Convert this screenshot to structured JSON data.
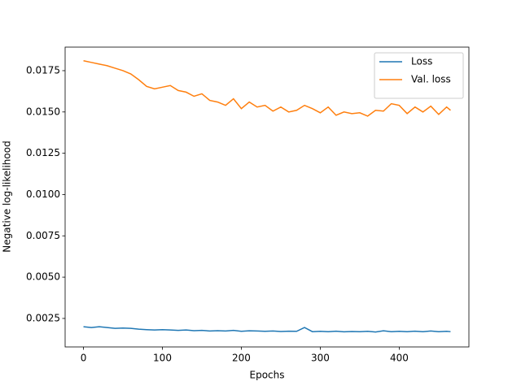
{
  "chart_data": {
    "type": "line",
    "x_label": "Epochs",
    "y_label": "Negative log-likelihood",
    "x": [
      0,
      10,
      20,
      30,
      40,
      50,
      60,
      70,
      80,
      90,
      100,
      110,
      120,
      130,
      140,
      150,
      160,
      170,
      180,
      190,
      200,
      210,
      220,
      230,
      240,
      250,
      260,
      270,
      280,
      290,
      300,
      310,
      320,
      330,
      340,
      350,
      360,
      370,
      380,
      390,
      400,
      410,
      420,
      430,
      440,
      450,
      460,
      465
    ],
    "series": [
      {
        "name": "Loss",
        "color": "#1f77b4",
        "values": [
          0.002,
          0.00195,
          0.002,
          0.00195,
          0.0019,
          0.00192,
          0.0019,
          0.00185,
          0.00182,
          0.0018,
          0.00182,
          0.0018,
          0.00178,
          0.0018,
          0.00176,
          0.00178,
          0.00174,
          0.00176,
          0.00174,
          0.00178,
          0.00172,
          0.00175,
          0.00174,
          0.00172,
          0.00174,
          0.00171,
          0.00173,
          0.00172,
          0.00195,
          0.0017,
          0.00172,
          0.0017,
          0.00173,
          0.00169,
          0.00171,
          0.0017,
          0.00172,
          0.00168,
          0.00175,
          0.0017,
          0.00172,
          0.0017,
          0.00173,
          0.0017,
          0.00174,
          0.0017,
          0.00172,
          0.0017
        ]
      },
      {
        "name": "Val. loss",
        "color": "#ff7f0e",
        "values": [
          0.0181,
          0.018,
          0.0179,
          0.0178,
          0.01765,
          0.0175,
          0.0173,
          0.01695,
          0.01655,
          0.0164,
          0.0165,
          0.0166,
          0.0163,
          0.0162,
          0.01595,
          0.0161,
          0.0157,
          0.0156,
          0.0154,
          0.0158,
          0.0152,
          0.0156,
          0.0153,
          0.0154,
          0.01505,
          0.0153,
          0.015,
          0.0151,
          0.0154,
          0.0152,
          0.01495,
          0.0153,
          0.0148,
          0.015,
          0.0149,
          0.01495,
          0.01475,
          0.0151,
          0.01505,
          0.0155,
          0.0154,
          0.0149,
          0.0153,
          0.015,
          0.01535,
          0.01485,
          0.0153,
          0.0151
        ]
      }
    ],
    "xlim": [
      -23.25,
      488.25
    ],
    "xticks": [
      0,
      100,
      200,
      300,
      400
    ],
    "ylim": [
      0.000775,
      0.018925
    ],
    "yticks": [
      0.0025,
      {
        "value": 0.005,
        "label": "0.0050"
      },
      0.0075,
      {
        "value": 0.01,
        "label": "0.0100"
      },
      0.0125,
      {
        "value": 0.015,
        "label": "0.0150"
      },
      0.0175
    ],
    "legend": "upper right",
    "grid": false
  }
}
